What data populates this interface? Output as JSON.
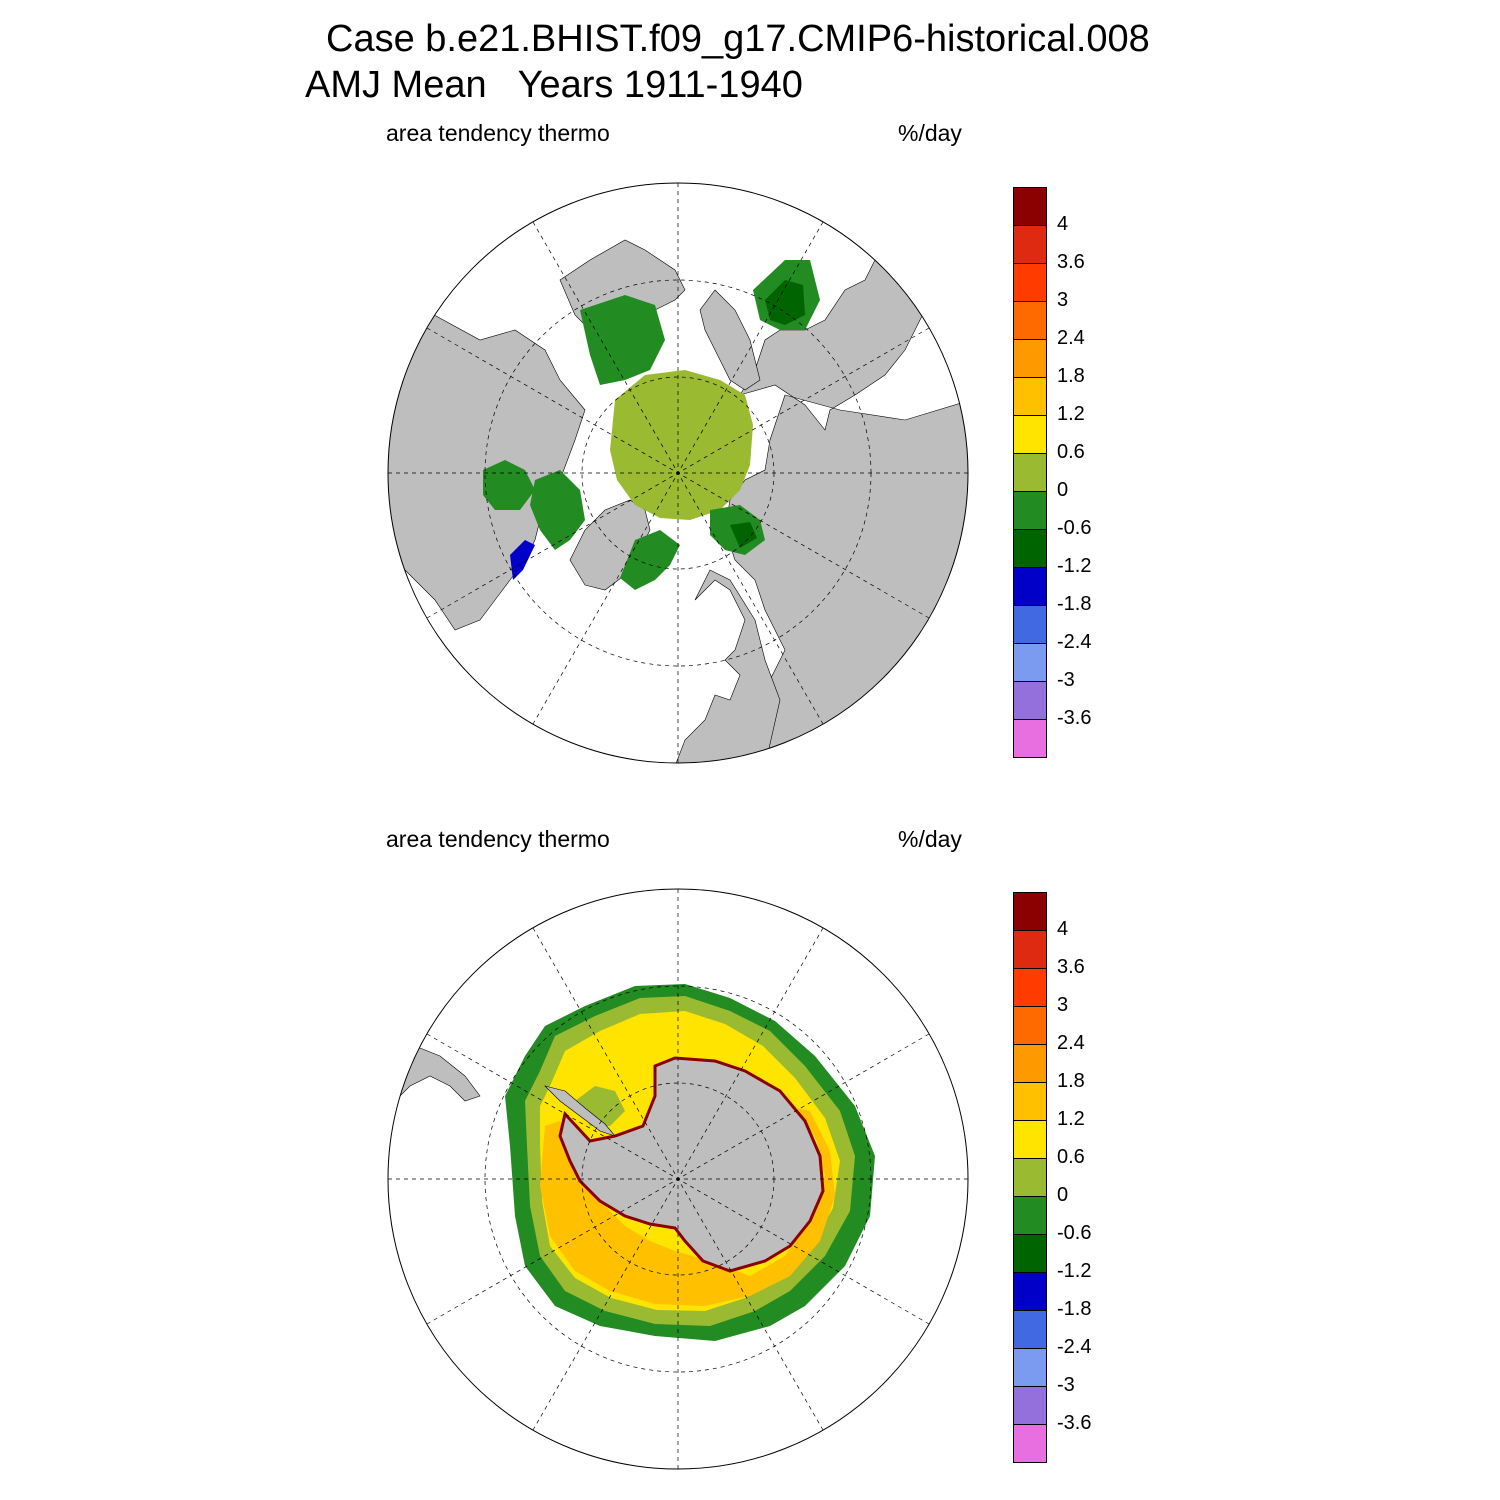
{
  "title": {
    "line1": "Case b.e21.BHIST.f09_g17.CMIP6-historical.008",
    "line2": "AMJ Mean   Years 1911-1940"
  },
  "panels": [
    {
      "left_label": "area tendency thermo",
      "units": "%/day",
      "hemisphere": "north"
    },
    {
      "left_label": "area tendency thermo",
      "units": "%/day",
      "hemisphere": "south"
    }
  ],
  "colorbar": {
    "labels": [
      "4",
      "3.6",
      "3",
      "2.4",
      "1.8",
      "1.2",
      "0.6",
      "0",
      "-0.6",
      "-1.2",
      "-1.8",
      "-2.4",
      "-3",
      "-3.6"
    ],
    "colors": [
      "#8b0000",
      "#dd2a10",
      "#ff3b00",
      "#ff6a00",
      "#ff9900",
      "#ffc000",
      "#ffe400",
      "#9aba32",
      "#228b22",
      "#006400",
      "#0000c8",
      "#4169e1",
      "#7a9bf0",
      "#9370db",
      "#e86fe0"
    ]
  },
  "colors": {
    "land": "#bebebe",
    "ocean": "#ffffff",
    "coastline": "#000000",
    "graticule": "#000000"
  }
}
